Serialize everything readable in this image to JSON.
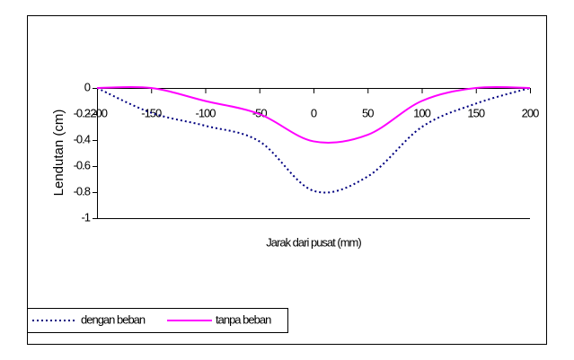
{
  "chart_data": {
    "type": "line",
    "x_label": "Jarak dari pusat (mm)",
    "y_label": "Lendutan (cm)",
    "x": [
      -200,
      -150,
      -100,
      -50,
      0,
      50,
      100,
      150,
      200
    ],
    "series": [
      {
        "name": "dengan beban",
        "color": "#000080",
        "dash": true,
        "values": [
          0,
          -0.19,
          -0.29,
          -0.41,
          -0.79,
          -0.68,
          -0.3,
          -0.12,
          0
        ]
      },
      {
        "name": "tanpa beban",
        "color": "#ff00ff",
        "dash": false,
        "values": [
          0,
          0,
          -0.1,
          -0.2,
          -0.41,
          -0.36,
          -0.1,
          0,
          0
        ]
      }
    ],
    "xlim": [
      -200,
      200
    ],
    "xticks": [
      -200,
      -150,
      -100,
      -50,
      0,
      50,
      100,
      150,
      200
    ],
    "ylim": [
      -1,
      0
    ],
    "yticks": [
      0,
      -0.2,
      -0.4,
      -0.6,
      -0.8,
      -1
    ],
    "legend": "bottom-left"
  }
}
